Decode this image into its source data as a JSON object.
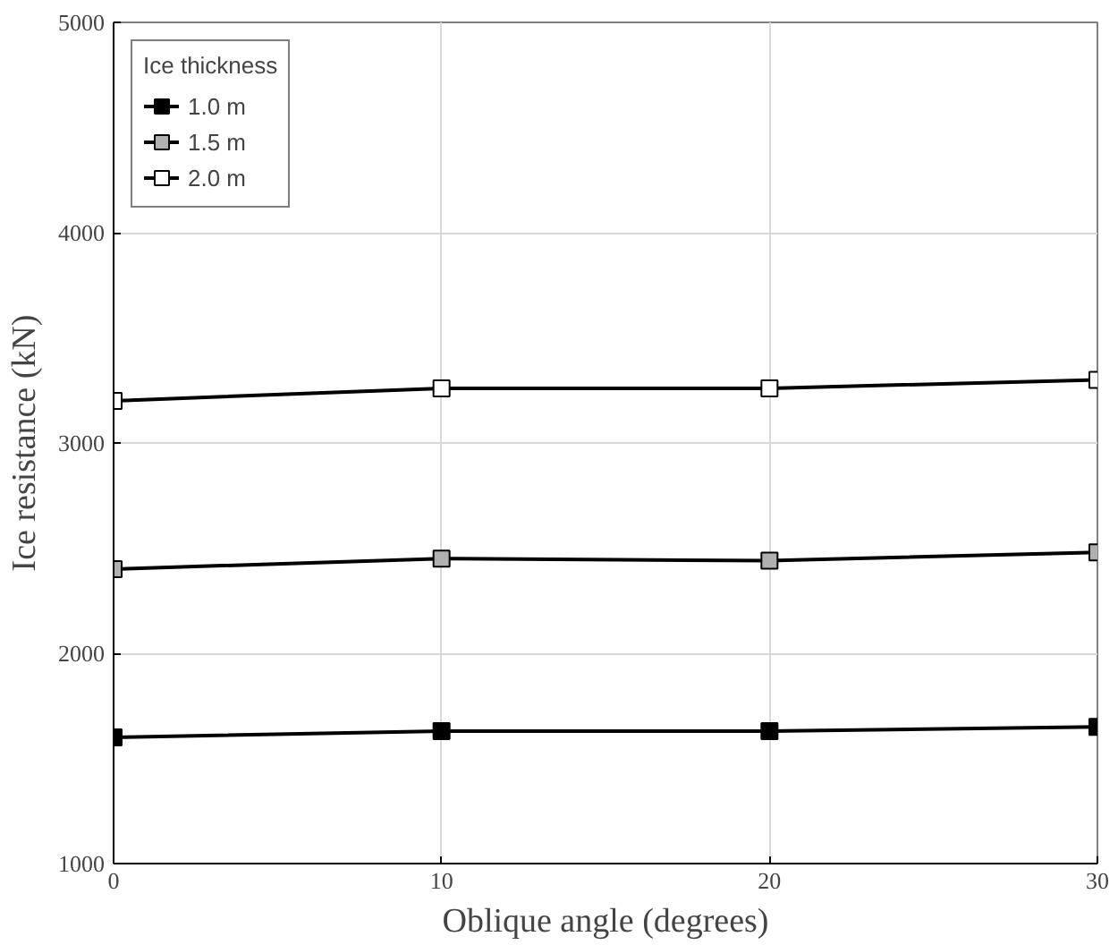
{
  "chart_data": {
    "type": "line",
    "xlabel": "Oblique angle (degrees)",
    "ylabel": "Ice resistance (kN)",
    "legend_title": "Ice thickness",
    "x": [
      0,
      10,
      20,
      30
    ],
    "series": [
      {
        "name": "1.0 m",
        "color": "#000000",
        "values": [
          1600,
          1630,
          1630,
          1650
        ]
      },
      {
        "name": "1.5 m",
        "color": "#b0b0b0",
        "values": [
          2400,
          2450,
          2440,
          2480
        ]
      },
      {
        "name": "2.0 m",
        "color": "#ffffff",
        "values": [
          3200,
          3260,
          3260,
          3300
        ]
      }
    ],
    "xlim": [
      0,
      30
    ],
    "xticks": [
      0,
      10,
      20,
      30
    ],
    "ylim": [
      1000,
      5000
    ],
    "yticks": [
      1000,
      2000,
      3000,
      4000,
      5000
    ],
    "grid": true,
    "legend": "top left",
    "marker": "square",
    "line_style": "solid"
  }
}
